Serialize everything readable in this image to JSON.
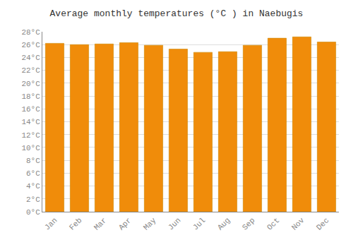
{
  "chart_data": {
    "type": "bar",
    "title": "Average monthly temperatures (°C ) in Naebugis",
    "categories": [
      "Jan",
      "Feb",
      "Mar",
      "Apr",
      "May",
      "Jun",
      "Jul",
      "Aug",
      "Sep",
      "Oct",
      "Nov",
      "Dec"
    ],
    "values": [
      26.2,
      26.0,
      26.1,
      26.3,
      25.9,
      25.3,
      24.8,
      24.9,
      25.9,
      27.0,
      27.2,
      26.4
    ],
    "color": "#f08c0a",
    "ylim": [
      0,
      28
    ],
    "yticks": [
      {
        "value": 0,
        "label": "0°C"
      },
      {
        "value": 2,
        "label": "2°C"
      },
      {
        "value": 4,
        "label": "4°C"
      },
      {
        "value": 6,
        "label": "6°C"
      },
      {
        "value": 8,
        "label": "8°C"
      },
      {
        "value": 10,
        "label": "10°C"
      },
      {
        "value": 12,
        "label": "12°C"
      },
      {
        "value": 14,
        "label": "14°C"
      },
      {
        "value": 16,
        "label": "16°C"
      },
      {
        "value": 18,
        "label": "18°C"
      },
      {
        "value": 20,
        "label": "20°C"
      },
      {
        "value": 22,
        "label": "22°C"
      },
      {
        "value": 24,
        "label": "24°C"
      },
      {
        "value": 26,
        "label": "26°C"
      },
      {
        "value": 28,
        "label": "28°C"
      }
    ],
    "grid": true
  }
}
